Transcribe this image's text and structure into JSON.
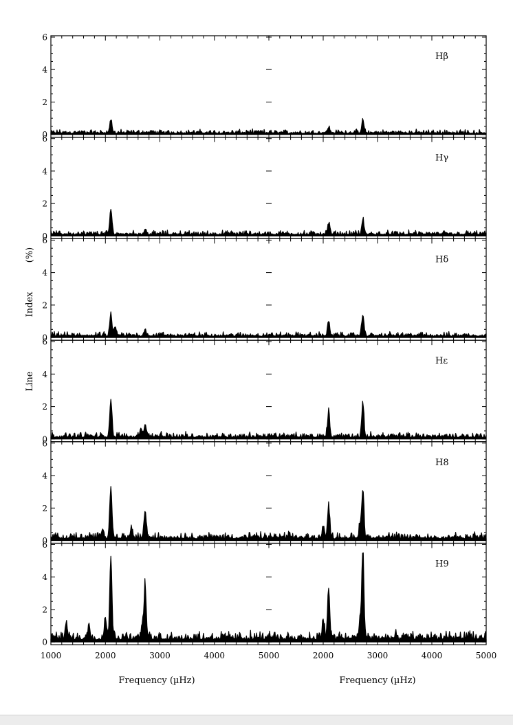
{
  "chart_data": {
    "type": "line",
    "layout": "6 rows x 2 columns of stacked spectra",
    "ylabel": "Line Index (%)",
    "ylabel_words": [
      "Line",
      "Index",
      "(%)"
    ],
    "xlabel": "Frequency (µHz)",
    "y_ticks": [
      "0",
      "2",
      "4",
      "6"
    ],
    "ylim": [
      0,
      6
    ],
    "columns": [
      {
        "name": "left",
        "xlim": [
          1000,
          5000
        ],
        "x_ticks": [
          "1000",
          "2000",
          "3000",
          "4000",
          "5000"
        ]
      },
      {
        "name": "right",
        "xlim": [
          1000,
          5000
        ],
        "x_ticks": [
          "2000",
          "3000",
          "4000",
          "5000"
        ]
      }
    ],
    "panels": [
      {
        "label": "Hβ",
        "noise_level": 0.18,
        "left_peaks": [
          {
            "x": 2100,
            "y": 0.8
          }
        ],
        "right_peaks": [
          {
            "x": 2100,
            "y": 0.35
          },
          {
            "x": 2730,
            "y": 0.75
          }
        ]
      },
      {
        "label": "Hγ",
        "noise_level": 0.2,
        "left_peaks": [
          {
            "x": 2100,
            "y": 1.5
          },
          {
            "x": 2730,
            "y": 0.3
          }
        ],
        "right_peaks": [
          {
            "x": 2100,
            "y": 0.65
          },
          {
            "x": 2730,
            "y": 0.9
          }
        ]
      },
      {
        "label": "Hδ",
        "noise_level": 0.2,
        "left_peaks": [
          {
            "x": 2100,
            "y": 1.35
          },
          {
            "x": 2180,
            "y": 0.5
          },
          {
            "x": 2730,
            "y": 0.4
          }
        ],
        "right_peaks": [
          {
            "x": 2100,
            "y": 0.8
          },
          {
            "x": 2730,
            "y": 1.3
          }
        ]
      },
      {
        "label": "Hε",
        "noise_level": 0.25,
        "left_peaks": [
          {
            "x": 2100,
            "y": 2.3
          },
          {
            "x": 2730,
            "y": 0.8
          },
          {
            "x": 2650,
            "y": 0.5
          }
        ],
        "right_peaks": [
          {
            "x": 2100,
            "y": 1.5
          },
          {
            "x": 2730,
            "y": 1.95
          }
        ]
      },
      {
        "label": "H8",
        "noise_level": 0.3,
        "left_peaks": [
          {
            "x": 2100,
            "y": 3.15
          },
          {
            "x": 2730,
            "y": 1.7
          },
          {
            "x": 2480,
            "y": 0.6
          },
          {
            "x": 1950,
            "y": 0.6
          }
        ],
        "right_peaks": [
          {
            "x": 2100,
            "y": 1.95
          },
          {
            "x": 2730,
            "y": 3.0
          },
          {
            "x": 2000,
            "y": 0.7
          },
          {
            "x": 2680,
            "y": 0.8
          }
        ]
      },
      {
        "label": "H9",
        "noise_level": 0.4,
        "left_peaks": [
          {
            "x": 2100,
            "y": 5.1
          },
          {
            "x": 2730,
            "y": 3.2
          },
          {
            "x": 2000,
            "y": 1.3
          },
          {
            "x": 1280,
            "y": 1.0
          },
          {
            "x": 1700,
            "y": 0.8
          },
          {
            "x": 2680,
            "y": 0.9
          }
        ],
        "right_peaks": [
          {
            "x": 2100,
            "y": 3.15
          },
          {
            "x": 2730,
            "y": 5.2
          },
          {
            "x": 2000,
            "y": 1.1
          },
          {
            "x": 2680,
            "y": 1.2
          }
        ]
      }
    ]
  }
}
